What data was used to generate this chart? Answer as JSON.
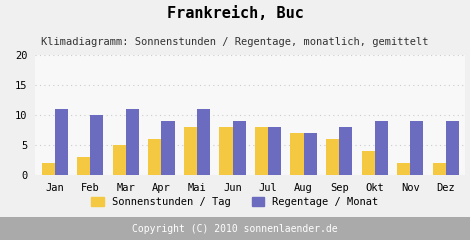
{
  "title": "Frankreich, Buc",
  "subtitle": "Klimadiagramm: Sonnenstunden / Regentage, monatlich, gemittelt",
  "months": [
    "Jan",
    "Feb",
    "Mar",
    "Apr",
    "Mai",
    "Jun",
    "Jul",
    "Aug",
    "Sep",
    "Okt",
    "Nov",
    "Dez"
  ],
  "sonnenstunden": [
    2,
    3,
    5,
    6,
    8,
    8,
    8,
    7,
    6,
    4,
    2,
    2
  ],
  "regentage": [
    11,
    10,
    11,
    9,
    11,
    9,
    8,
    7,
    8,
    9,
    9,
    9
  ],
  "bar_color_sun": "#F5C842",
  "bar_color_rain": "#6B6BBF",
  "ylim": [
    0,
    20
  ],
  "yticks": [
    0,
    5,
    10,
    15,
    20
  ],
  "legend_sun": "Sonnenstunden / Tag",
  "legend_rain": "Regentage / Monat",
  "copyright": "Copyright (C) 2010 sonnenlaender.de",
  "bg_color": "#F0F0F0",
  "plot_bg_color": "#F8F8F8",
  "footer_bg": "#AAAAAA",
  "title_fontsize": 11,
  "subtitle_fontsize": 7.5,
  "axis_fontsize": 7.5,
  "legend_fontsize": 7.5,
  "copyright_fontsize": 7
}
